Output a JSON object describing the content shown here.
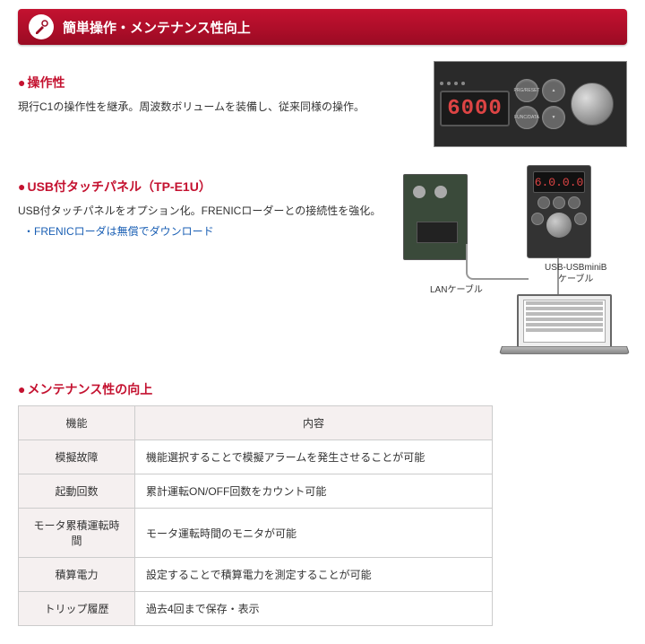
{
  "header": {
    "title": "簡単操作・メンテナンス性向上",
    "bar_color_top": "#c41230",
    "bar_color_bottom": "#9a0b23",
    "icon": "screwdriver-icon"
  },
  "section1": {
    "title": "操作性",
    "body": "現行C1の操作性を継承。周波数ボリュームを装備し、従来同様の操作。",
    "panel": {
      "display_value": "6000",
      "display_color": "#d44444",
      "buttons": [
        "PRG/RESET",
        "▲",
        "FUNC/DATA",
        "▼"
      ],
      "background": "#2a2a2a"
    }
  },
  "section2": {
    "title": "USB付タッチパネル（TP-E1U）",
    "body": "USB付タッチパネルをオプション化。FRENICローダーとの接続性を強化。",
    "link": "・FRENICローダは無償でダウンロード",
    "diagram": {
      "touchpanel_display": "6.0.0.0",
      "lan_label": "LANケーブル",
      "usb_label_line1": "USB-USBminiB",
      "usb_label_line2": "ケーブル",
      "board_color": "#3a4a3a",
      "touchpanel_color": "#333333",
      "cable_color": "#999999"
    }
  },
  "section3": {
    "title": "メンテナンス性の向上",
    "table": {
      "headers": [
        "機能",
        "内容"
      ],
      "rows": [
        {
          "label": "模擬故障",
          "desc": "機能選択することで模擬アラームを発生させることが可能"
        },
        {
          "label": "起動回数",
          "desc": "累計運転ON/OFF回数をカウント可能"
        },
        {
          "label": "モータ累積運転時間",
          "desc": "モータ運転時間のモニタが可能"
        },
        {
          "label": "積算電力",
          "desc": "設定することで積算電力を測定することが可能"
        },
        {
          "label": "トリップ履歴",
          "desc": "過去4回まで保存・表示"
        }
      ],
      "header_bg": "#f5f0f0",
      "border_color": "#cccccc"
    }
  },
  "colors": {
    "accent": "#c41230",
    "link": "#1a5fb4",
    "text": "#333333"
  }
}
